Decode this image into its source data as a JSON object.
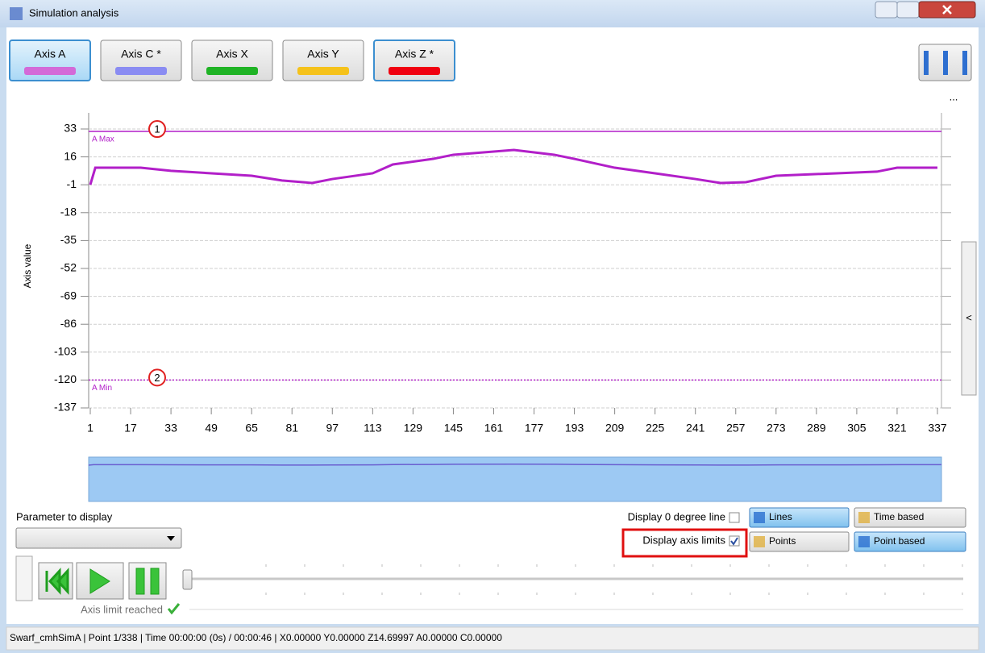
{
  "window": {
    "title": "Simulation analysis"
  },
  "tabs": [
    {
      "label": "Axis A",
      "color": "#d36ad8",
      "active": true
    },
    {
      "label": "Axis C *",
      "color": "#8a8cf2",
      "active": false
    },
    {
      "label": "Axis X",
      "color": "#1fb325",
      "active": false
    },
    {
      "label": "Axis Y",
      "color": "#f5c21b",
      "active": false
    },
    {
      "label": "Axis Z *",
      "color": "#f00010",
      "active": false
    }
  ],
  "more": "...",
  "collapse": "<",
  "chart_data": {
    "type": "line",
    "y_label": "Axis value",
    "color": "#b21fc9",
    "x": [
      1,
      3,
      21,
      33,
      65,
      77,
      89,
      97,
      113,
      121,
      137,
      145,
      169,
      185,
      193,
      209,
      225,
      241,
      251,
      261,
      273,
      297,
      313,
      321,
      337
    ],
    "values": [
      -1,
      9.4,
      9.4,
      7.5,
      4.5,
      1.6,
      0.1,
      2.5,
      6,
      11.4,
      14.8,
      17.3,
      20.2,
      17.3,
      14.8,
      9.4,
      6,
      2.5,
      0.1,
      0.6,
      4.5,
      6,
      7,
      9.4,
      9.4
    ],
    "xlim": [
      1,
      337
    ],
    "ylim": [
      -137,
      33
    ],
    "xticks": [
      1,
      17,
      33,
      49,
      65,
      81,
      97,
      113,
      129,
      145,
      161,
      177,
      193,
      209,
      225,
      241,
      257,
      273,
      289,
      305,
      321,
      337
    ],
    "yticks": [
      33,
      16,
      -1,
      -18,
      -35,
      -52,
      -69,
      -86,
      -103,
      -120,
      -137
    ],
    "grid": true,
    "limits": [
      {
        "label": "A Max",
        "value": 31.5,
        "marker": "1",
        "style": "solid"
      },
      {
        "label": "A Min",
        "value": -120,
        "marker": "2",
        "style": "dotted"
      }
    ]
  },
  "controls": {
    "parameter_label": "Parameter to display",
    "display_zero_line": {
      "label": "Display 0 degree line",
      "checked": false
    },
    "display_axis_limits": {
      "label": "Display axis limits",
      "checked": true
    },
    "view_buttons": [
      "Lines",
      "Points"
    ],
    "view_selected": 0,
    "mode_buttons": [
      "Time based",
      "Point based"
    ],
    "mode_selected": 1,
    "limit_status": "Axis limit reached"
  },
  "status_bar": "Swarf_cmhSimA | Point 1/338 | Time 00:00:00 (0s) / 00:00:46 | X0.00000 Y0.00000 Z14.69997 A0.00000 C0.00000"
}
